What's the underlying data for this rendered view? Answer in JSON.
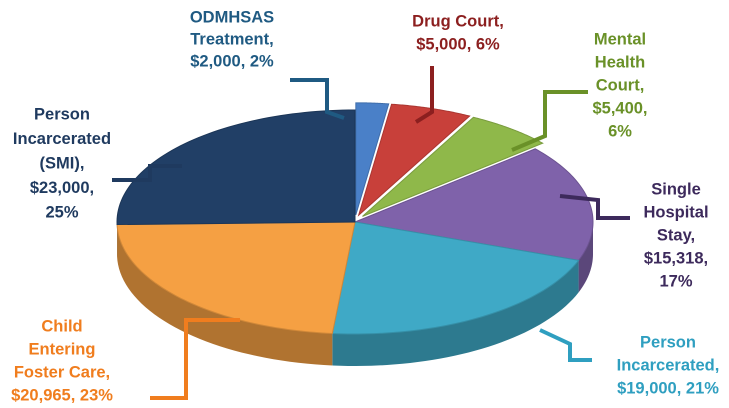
{
  "chart_data": {
    "type": "pie",
    "labels": [
      [
        "ODMHSAS",
        "Treatment,",
        "$2,000, 2%"
      ],
      [
        "Drug Court,",
        "$5,000, 6%"
      ],
      [
        "Mental",
        "Health",
        "Court,",
        "$5,400,",
        "6%"
      ],
      [
        "Single",
        "Hospital",
        "Stay,",
        "$15,318,",
        "17%"
      ],
      [
        "Person",
        "Incarcerated,",
        "$19,000, 21%"
      ],
      [
        "Child",
        "Entering",
        "Foster Care,",
        "$20,965, 23%"
      ],
      [
        "Person",
        "Incarcerated",
        "(SMI),",
        "$23,000,",
        "25%"
      ]
    ],
    "values": [
      2000,
      5000,
      5400,
      15318,
      19000,
      20965,
      23000
    ],
    "colors": [
      "#4a80c8",
      "#c8403a",
      "#8fb84a",
      "#7f62aa",
      "#3fa9c6",
      "#f5a043",
      "#213f66"
    ],
    "label_colors": [
      "#1f5a82",
      "#8c1f1f",
      "#6a9128",
      "#3d2a5c",
      "#2f9fc0",
      "#f07d1e",
      "#1f3a5f"
    ]
  }
}
